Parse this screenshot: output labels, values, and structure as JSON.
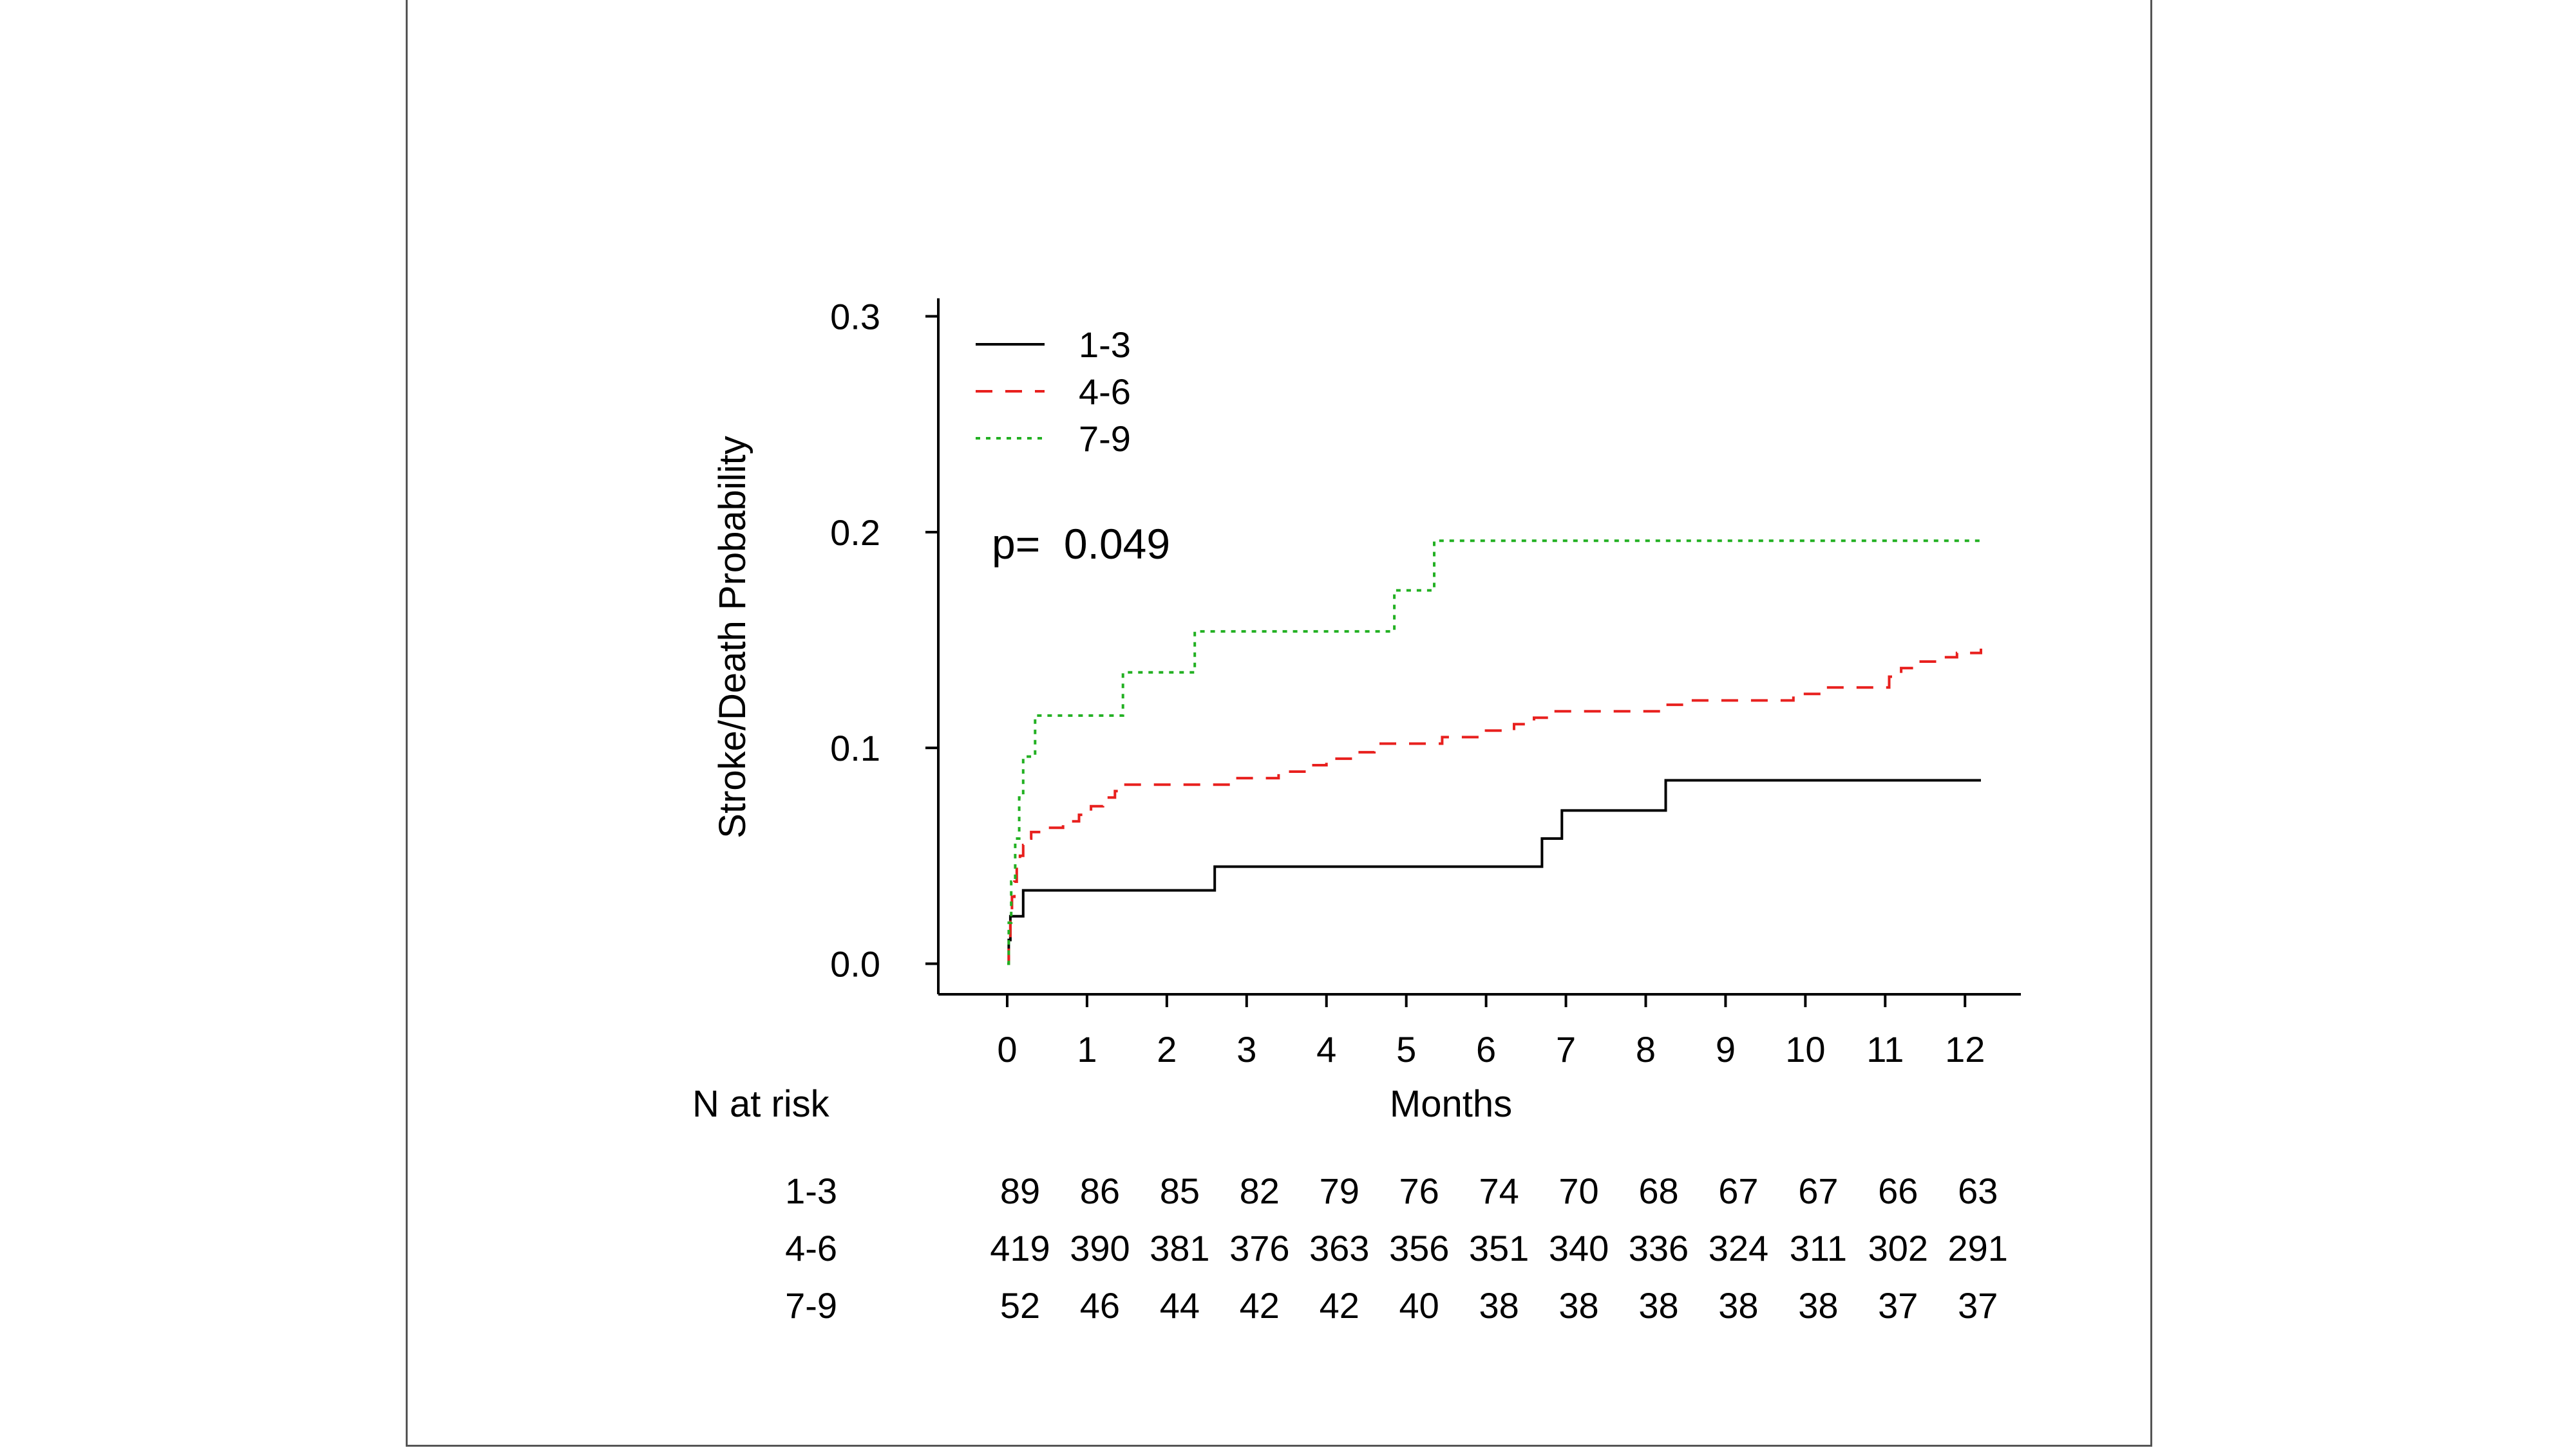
{
  "chart_data": {
    "type": "line",
    "subtype": "kaplan-meier step",
    "title": "",
    "xlabel": "Months",
    "ylabel": "Stroke/Death Probability",
    "xlim": [
      -0.5,
      12.7
    ],
    "ylim": [
      -0.01,
      0.31
    ],
    "x_ticks": [
      0,
      1,
      2,
      3,
      4,
      5,
      6,
      7,
      8,
      9,
      10,
      11,
      12
    ],
    "y_ticks": [
      "0.0",
      "0.1",
      "0.2",
      "0.3"
    ],
    "grid": false,
    "legend_position": "top-left",
    "annotation": "p=  0.049",
    "series": [
      {
        "name": "1-3",
        "color": "#000000",
        "dash": "solid",
        "points": [
          [
            0,
            0
          ],
          [
            0.02,
            0.011
          ],
          [
            0.04,
            0.022
          ],
          [
            0.2,
            0.034
          ],
          [
            2.6,
            0.045
          ],
          [
            6.7,
            0.058
          ],
          [
            6.95,
            0.071
          ],
          [
            8.25,
            0.085
          ],
          [
            12.2,
            0.085
          ]
        ]
      },
      {
        "name": "4-6",
        "color": "#e8201e",
        "dash": "dashed",
        "points": [
          [
            0,
            0
          ],
          [
            0.02,
            0.012
          ],
          [
            0.04,
            0.024
          ],
          [
            0.06,
            0.031
          ],
          [
            0.09,
            0.038
          ],
          [
            0.12,
            0.045
          ],
          [
            0.16,
            0.05
          ],
          [
            0.2,
            0.055
          ],
          [
            0.25,
            0.058
          ],
          [
            0.3,
            0.061
          ],
          [
            0.45,
            0.063
          ],
          [
            0.7,
            0.066
          ],
          [
            0.9,
            0.069
          ],
          [
            1.05,
            0.073
          ],
          [
            1.2,
            0.077
          ],
          [
            1.35,
            0.08
          ],
          [
            1.45,
            0.083
          ],
          [
            2.8,
            0.086
          ],
          [
            3.4,
            0.089
          ],
          [
            3.75,
            0.092
          ],
          [
            4.0,
            0.095
          ],
          [
            4.35,
            0.098
          ],
          [
            4.6,
            0.102
          ],
          [
            5.45,
            0.105
          ],
          [
            6.0,
            0.108
          ],
          [
            6.35,
            0.111
          ],
          [
            6.6,
            0.114
          ],
          [
            6.85,
            0.117
          ],
          [
            8.25,
            0.12
          ],
          [
            8.55,
            0.122
          ],
          [
            9.85,
            0.125
          ],
          [
            10.25,
            0.128
          ],
          [
            11.05,
            0.133
          ],
          [
            11.2,
            0.137
          ],
          [
            11.35,
            0.14
          ],
          [
            11.65,
            0.142
          ],
          [
            11.9,
            0.144
          ],
          [
            12.2,
            0.146
          ]
        ]
      },
      {
        "name": "7-9",
        "color": "#22b022",
        "dash": "dotted",
        "points": [
          [
            0,
            0
          ],
          [
            0.02,
            0.019
          ],
          [
            0.05,
            0.038
          ],
          [
            0.1,
            0.058
          ],
          [
            0.15,
            0.077
          ],
          [
            0.2,
            0.096
          ],
          [
            0.35,
            0.115
          ],
          [
            1.45,
            0.135
          ],
          [
            2.35,
            0.154
          ],
          [
            4.85,
            0.173
          ],
          [
            5.35,
            0.196
          ],
          [
            12.2,
            0.196
          ]
        ]
      }
    ],
    "risk_table": {
      "title": "N at risk",
      "rows": [
        {
          "label": "1-3",
          "values": [
            89,
            86,
            85,
            82,
            79,
            76,
            74,
            70,
            68,
            67,
            67,
            66,
            63
          ]
        },
        {
          "label": "4-6",
          "values": [
            419,
            390,
            381,
            376,
            363,
            356,
            351,
            340,
            336,
            324,
            311,
            302,
            291
          ]
        },
        {
          "label": "7-9",
          "values": [
            52,
            46,
            44,
            42,
            42,
            40,
            38,
            38,
            38,
            38,
            38,
            37,
            37
          ]
        }
      ]
    }
  }
}
